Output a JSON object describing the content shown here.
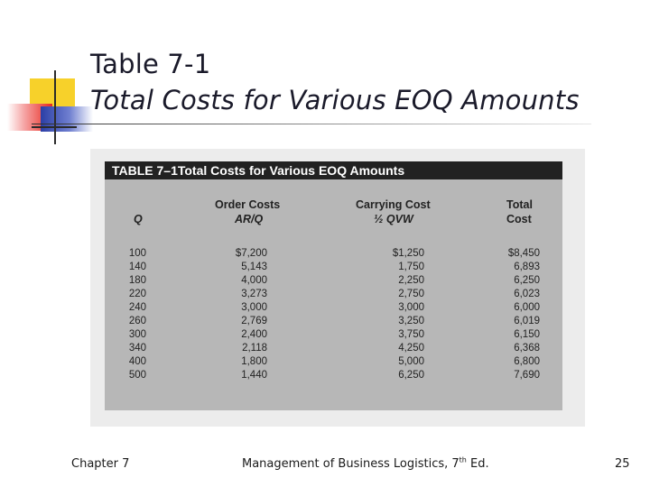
{
  "slide": {
    "title": "Table 7-1",
    "subtitle": "Total Costs for Various EOQ Amounts"
  },
  "table": {
    "caption": "TABLE 7–1Total Costs for Various EOQ Amounts",
    "columns": [
      {
        "line1": "",
        "line2": "Q"
      },
      {
        "line1": "Order Costs",
        "line2": "AR/Q"
      },
      {
        "line1": "Carrying Cost",
        "line2": "½ QVW"
      },
      {
        "line1": "Total",
        "line2": "Cost"
      }
    ],
    "rows": [
      [
        "100",
        "$7,200",
        "$1,250",
        "$8,450"
      ],
      [
        "140",
        "5,143",
        "1,750",
        "6,893"
      ],
      [
        "180",
        "4,000",
        "2,250",
        "6,250"
      ],
      [
        "220",
        "3,273",
        "2,750",
        "6,023"
      ],
      [
        "240",
        "3,000",
        "3,000",
        "6,000"
      ],
      [
        "260",
        "2,769",
        "3,250",
        "6,019"
      ],
      [
        "300",
        "2,400",
        "3,750",
        "6,150"
      ],
      [
        "340",
        "2,118",
        "4,250",
        "6,368"
      ],
      [
        "400",
        "1,800",
        "5,000",
        "6,800"
      ],
      [
        "500",
        "1,440",
        "6,250",
        "7,690"
      ]
    ]
  },
  "footer": {
    "left": "Chapter 7",
    "center_prefix": "Management of Business Logistics, 7",
    "center_sup": "th",
    "center_suffix": " Ed.",
    "page": "25"
  },
  "colors": {
    "accent_yellow": "#f7d12a",
    "accent_red": "#e8281e",
    "accent_blue": "#2b3fa6",
    "table_header_bg": "#222222",
    "table_body_bg": "#b7b7b7"
  }
}
